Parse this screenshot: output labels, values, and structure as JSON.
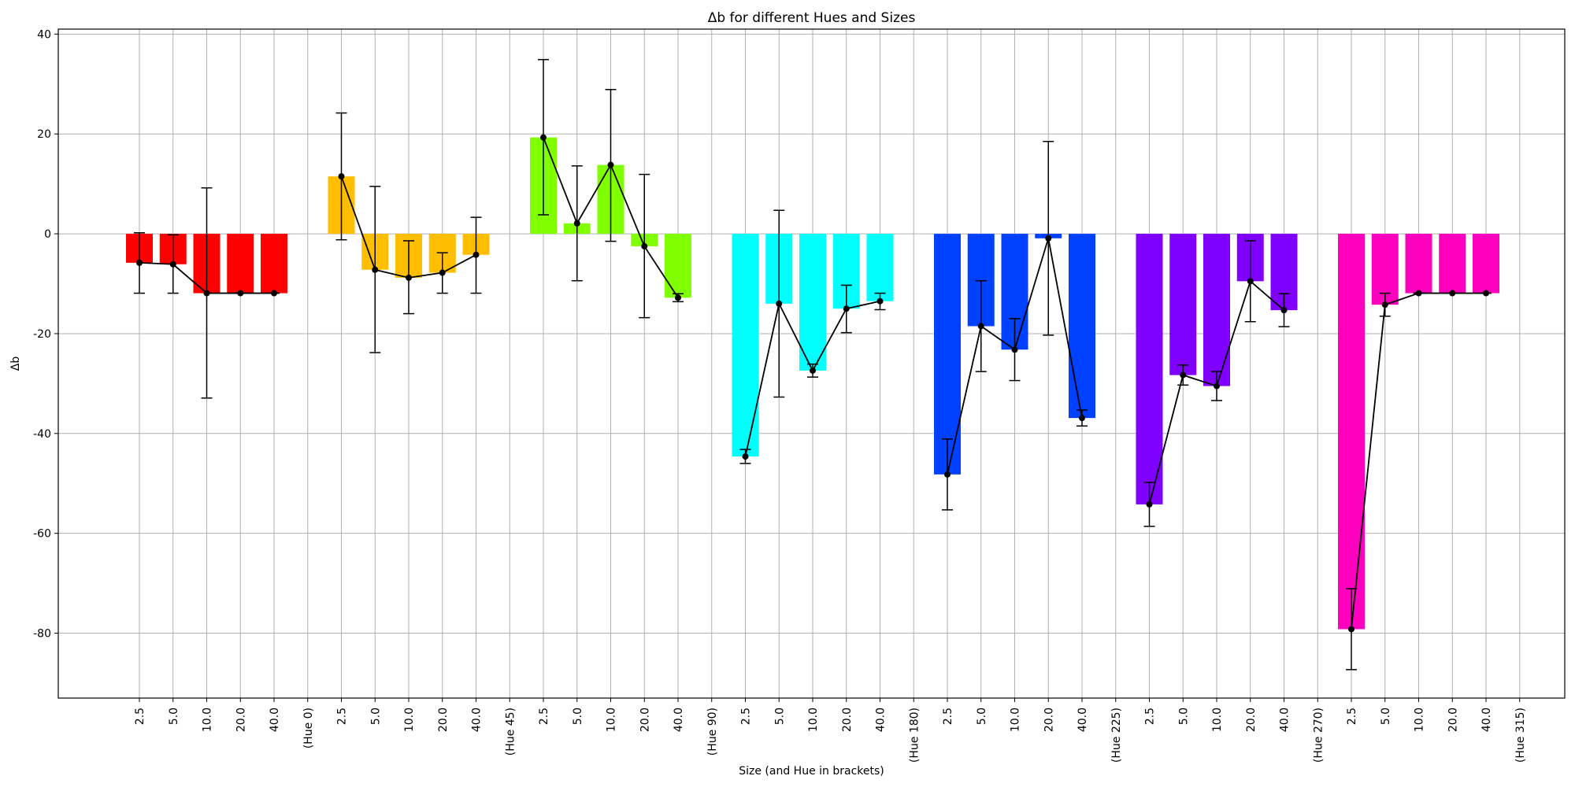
{
  "chart_data": {
    "type": "bar",
    "title": "Δb for different Hues and Sizes",
    "xlabel": "Size (and Hue in brackets)",
    "ylabel": "Δb",
    "ylim": [
      -93,
      41
    ],
    "yticks": [
      40,
      20,
      0,
      -20,
      -40,
      -60,
      -80
    ],
    "grid": true,
    "size_labels": [
      "2.5",
      "5.0",
      "10.0",
      "20.0",
      "40.0"
    ],
    "groups": [
      {
        "hue_label": "(Hue 0)",
        "color": "#ff0000",
        "values": [
          -5.8,
          -6.1,
          -11.9,
          -11.9,
          -11.9
        ],
        "err_low": [
          -11.9,
          -11.9,
          -32.9,
          -11.9,
          -11.9
        ],
        "err_high": [
          0.2,
          -0.2,
          9.2,
          -11.9,
          -11.9
        ]
      },
      {
        "hue_label": "(Hue 45)",
        "color": "#ffbf00",
        "values": [
          11.5,
          -7.2,
          -8.8,
          -7.8,
          -4.2
        ],
        "err_low": [
          -1.2,
          -23.8,
          -16.0,
          -11.9,
          -11.9
        ],
        "err_high": [
          24.2,
          9.5,
          -1.4,
          -3.8,
          3.3
        ]
      },
      {
        "hue_label": "(Hue 90)",
        "color": "#80ff00",
        "values": [
          19.3,
          2.1,
          13.8,
          -2.5,
          -12.8
        ],
        "err_low": [
          3.8,
          -9.4,
          -1.5,
          -16.8,
          -13.6
        ],
        "err_high": [
          34.9,
          13.6,
          28.9,
          11.9,
          -12.0
        ]
      },
      {
        "hue_label": "(Hue 180)",
        "color": "#00ffff",
        "values": [
          -44.6,
          -14.0,
          -27.4,
          -15.0,
          -13.5
        ],
        "err_low": [
          -46.0,
          -32.7,
          -28.7,
          -19.8,
          -15.2
        ],
        "err_high": [
          -43.2,
          4.7,
          -26.1,
          -10.3,
          -11.9
        ]
      },
      {
        "hue_label": "(Hue 225)",
        "color": "#0040ff",
        "values": [
          -48.2,
          -18.5,
          -23.2,
          -0.9,
          -36.9
        ],
        "err_low": [
          -55.3,
          -27.6,
          -29.4,
          -20.3,
          -38.5
        ],
        "err_high": [
          -41.1,
          -9.4,
          -17.0,
          18.5,
          -35.3
        ]
      },
      {
        "hue_label": "(Hue 270)",
        "color": "#8000ff",
        "values": [
          -54.2,
          -28.3,
          -30.5,
          -9.5,
          -15.3
        ],
        "err_low": [
          -58.6,
          -30.3,
          -33.4,
          -17.6,
          -18.6
        ],
        "err_high": [
          -49.8,
          -26.3,
          -27.6,
          -1.4,
          -12.0
        ]
      },
      {
        "hue_label": "(Hue 315)",
        "color": "#ff00bf",
        "values": [
          -79.2,
          -14.2,
          -11.9,
          -11.9,
          -11.9
        ],
        "err_low": [
          -87.3,
          -16.5,
          -11.9,
          -11.9,
          -11.9
        ],
        "err_high": [
          -71.1,
          -11.9,
          -11.9,
          -11.9,
          -11.9
        ]
      }
    ]
  }
}
